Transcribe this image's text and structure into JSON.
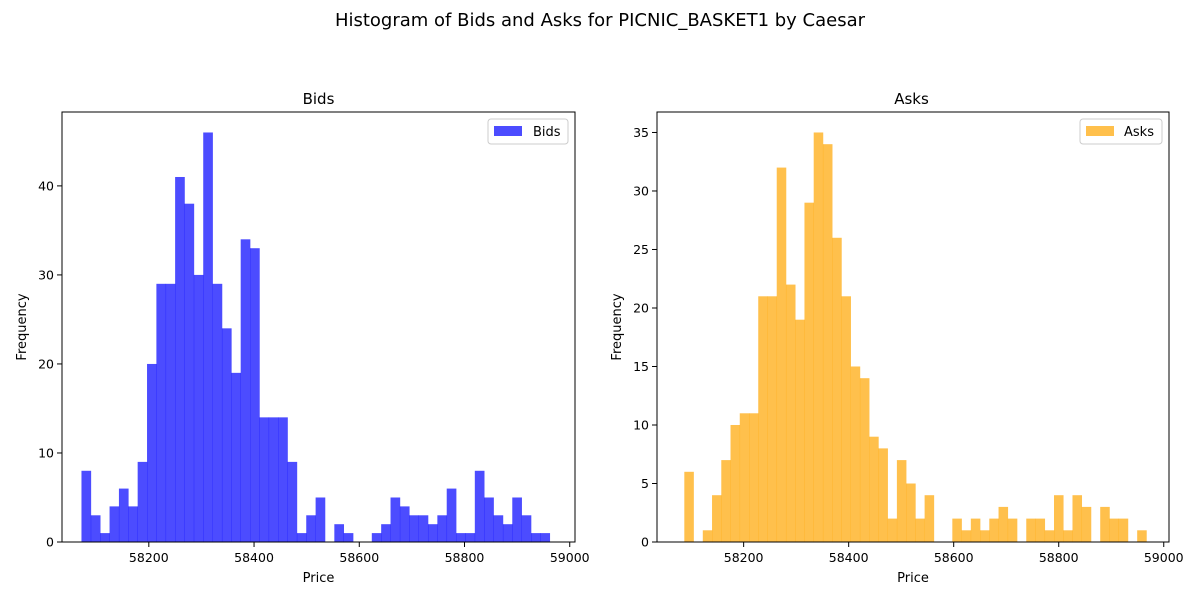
{
  "suptitle": "Histogram of Bids and Asks for PICNIC_BASKET1 by Caesar",
  "chart_data": [
    {
      "type": "bar",
      "histogram": true,
      "title": "Bids",
      "xlabel": "Price",
      "ylabel": "Frequency",
      "color": "#0000ff",
      "opacity": 0.7,
      "legend": "Bids",
      "legend_position": "upper right",
      "xlim": [
        58035,
        59010
      ],
      "ylim": [
        0,
        48.3
      ],
      "bin_start": 58072,
      "bin_width": 17.8,
      "values": [
        8,
        3,
        1,
        4,
        6,
        4,
        9,
        20,
        29,
        29,
        41,
        38,
        30,
        46,
        29,
        24,
        19,
        34,
        33,
        14,
        14,
        14,
        9,
        1,
        3,
        5,
        0,
        2,
        1,
        0,
        0,
        1,
        2,
        5,
        4,
        3,
        3,
        2,
        3,
        6,
        1,
        1,
        8,
        5,
        3,
        2,
        5,
        3,
        1,
        1
      ],
      "xticks": [
        58200,
        58400,
        58600,
        58800,
        59000
      ],
      "xtick_labels": [
        "58200",
        "58400",
        "58600",
        "58800",
        "59000"
      ],
      "yticks": [
        0,
        10,
        20,
        30,
        40
      ],
      "ytick_labels": [
        "0",
        "10",
        "20",
        "30",
        "40"
      ]
    },
    {
      "type": "bar",
      "histogram": true,
      "title": "Asks",
      "xlabel": "Price",
      "ylabel": "Frequency",
      "color": "#ffa500",
      "opacity": 0.7,
      "legend": "Asks",
      "legend_position": "upper right",
      "xlim": [
        58035,
        59010
      ],
      "ylim": [
        0,
        36.75
      ],
      "bin_start": 58087,
      "bin_width": 17.6,
      "values": [
        6,
        0,
        1,
        4,
        7,
        10,
        11,
        11,
        21,
        21,
        32,
        22,
        19,
        29,
        35,
        34,
        26,
        21,
        15,
        14,
        9,
        8,
        2,
        7,
        5,
        2,
        4,
        0,
        0,
        2,
        1,
        2,
        1,
        2,
        3,
        2,
        0,
        2,
        2,
        1,
        4,
        1,
        4,
        3,
        0,
        3,
        2,
        2,
        0,
        1
      ],
      "xticks": [
        58200,
        58400,
        58600,
        58800,
        59000
      ],
      "xtick_labels": [
        "58200",
        "58400",
        "58600",
        "58800",
        "59000"
      ],
      "yticks": [
        0,
        5,
        10,
        15,
        20,
        25,
        30,
        35
      ],
      "ytick_labels": [
        "0",
        "5",
        "10",
        "15",
        "20",
        "25",
        "30",
        "35"
      ]
    }
  ]
}
